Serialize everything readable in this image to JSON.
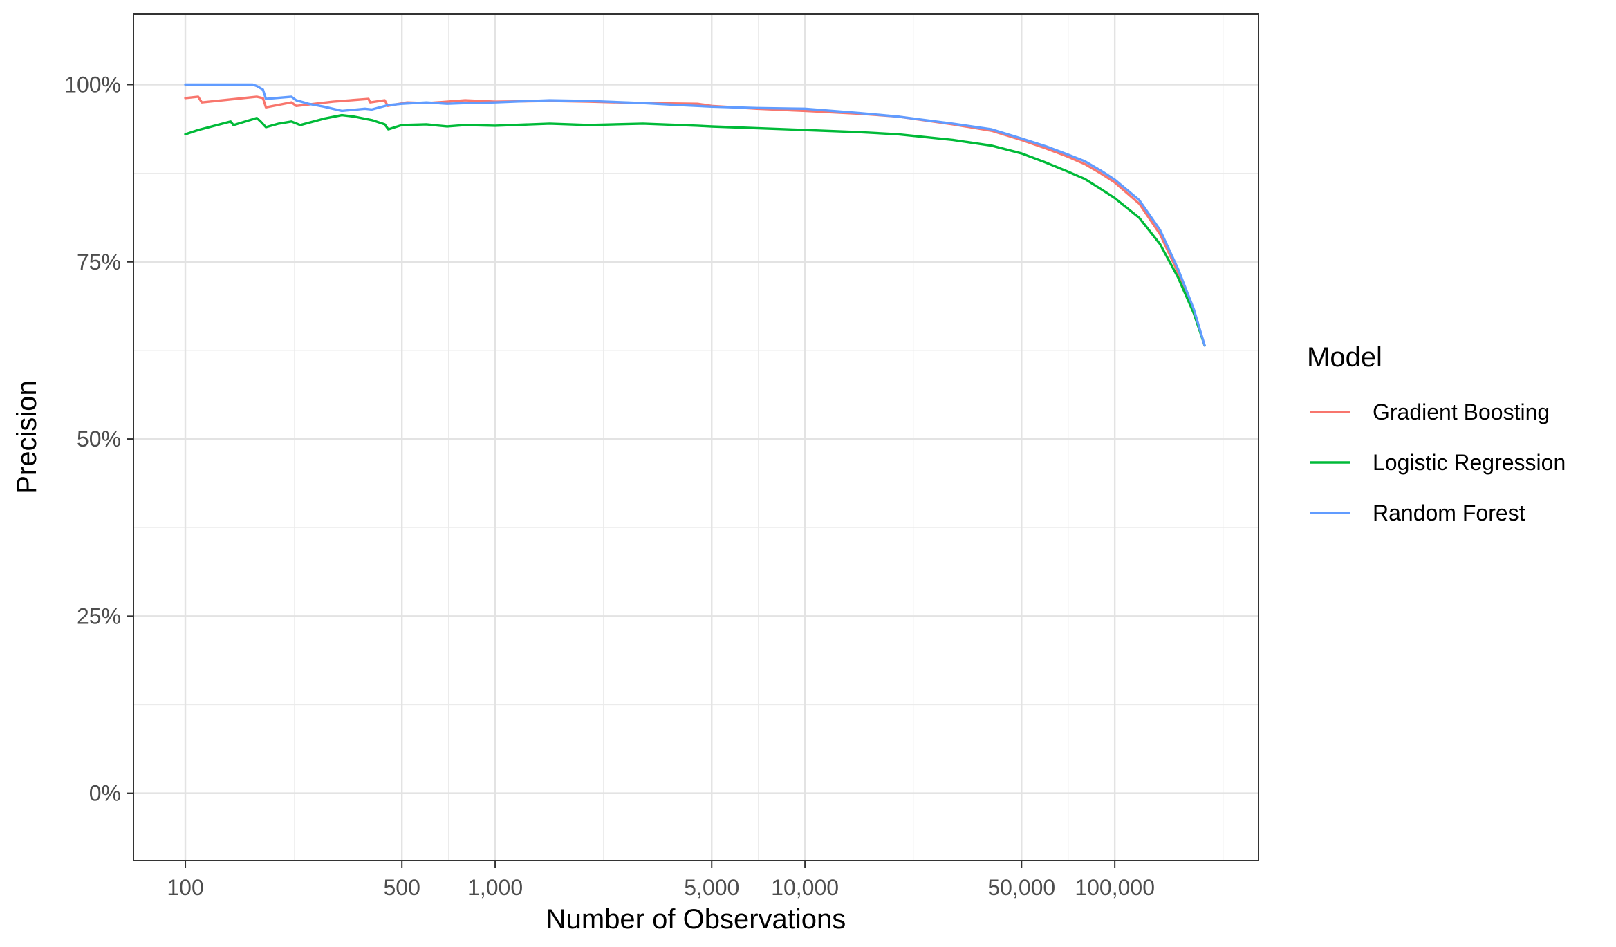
{
  "chart_data": {
    "type": "line",
    "xlabel": "Number of Observations",
    "ylabel": "Precision",
    "x_scale": "log10",
    "xlim": [
      68,
      291000
    ],
    "ylim": [
      -0.095,
      1.1
    ],
    "x_ticks": [
      {
        "value": 100,
        "label": "100"
      },
      {
        "value": 500,
        "label": "500"
      },
      {
        "value": 1000,
        "label": "1,000"
      },
      {
        "value": 5000,
        "label": "5,000"
      },
      {
        "value": 10000,
        "label": "10,000"
      },
      {
        "value": 50000,
        "label": "50,000"
      },
      {
        "value": 100000,
        "label": "100,000"
      }
    ],
    "x_minor_ticks": [
      225,
      707,
      2236,
      7071,
      22360,
      70710,
      223600
    ],
    "y_ticks": [
      {
        "value": 0,
        "label": "0%"
      },
      {
        "value": 0.25,
        "label": "25%"
      },
      {
        "value": 0.5,
        "label": "50%"
      },
      {
        "value": 0.75,
        "label": "75%"
      },
      {
        "value": 1.0,
        "label": "100%"
      }
    ],
    "y_minor_ticks": [
      0.125,
      0.375,
      0.625,
      0.875
    ],
    "grid": true,
    "legend": {
      "title": "Model",
      "position": "right"
    },
    "series": [
      {
        "name": "Gradient Boosting",
        "color": "#F8766D",
        "points": [
          [
            100,
            0.981
          ],
          [
            110,
            0.983
          ],
          [
            113,
            0.975
          ],
          [
            170,
            0.983
          ],
          [
            178,
            0.981
          ],
          [
            182,
            0.968
          ],
          [
            220,
            0.975
          ],
          [
            228,
            0.97
          ],
          [
            300,
            0.976
          ],
          [
            390,
            0.98
          ],
          [
            395,
            0.975
          ],
          [
            440,
            0.978
          ],
          [
            450,
            0.97
          ],
          [
            520,
            0.975
          ],
          [
            600,
            0.974
          ],
          [
            700,
            0.976
          ],
          [
            800,
            0.978
          ],
          [
            1000,
            0.976
          ],
          [
            1500,
            0.977
          ],
          [
            2000,
            0.976
          ],
          [
            3000,
            0.974
          ],
          [
            4500,
            0.973
          ],
          [
            5000,
            0.97
          ],
          [
            7000,
            0.966
          ],
          [
            10000,
            0.963
          ],
          [
            15000,
            0.959
          ],
          [
            20000,
            0.955
          ],
          [
            30000,
            0.944
          ],
          [
            40000,
            0.935
          ],
          [
            50000,
            0.922
          ],
          [
            60000,
            0.91
          ],
          [
            70000,
            0.899
          ],
          [
            80000,
            0.888
          ],
          [
            90000,
            0.875
          ],
          [
            100000,
            0.862
          ],
          [
            120000,
            0.832
          ],
          [
            140000,
            0.789
          ],
          [
            160000,
            0.735
          ],
          [
            180000,
            0.68
          ],
          [
            195000,
            0.632
          ]
        ]
      },
      {
        "name": "Logistic Regression",
        "color": "#00BA38",
        "points": [
          [
            100,
            0.93
          ],
          [
            110,
            0.936
          ],
          [
            140,
            0.948
          ],
          [
            143,
            0.943
          ],
          [
            170,
            0.953
          ],
          [
            175,
            0.948
          ],
          [
            182,
            0.94
          ],
          [
            200,
            0.945
          ],
          [
            220,
            0.948
          ],
          [
            235,
            0.943
          ],
          [
            280,
            0.952
          ],
          [
            320,
            0.957
          ],
          [
            350,
            0.955
          ],
          [
            400,
            0.95
          ],
          [
            440,
            0.944
          ],
          [
            452,
            0.937
          ],
          [
            500,
            0.943
          ],
          [
            600,
            0.944
          ],
          [
            700,
            0.941
          ],
          [
            800,
            0.943
          ],
          [
            1000,
            0.942
          ],
          [
            1500,
            0.945
          ],
          [
            2000,
            0.943
          ],
          [
            3000,
            0.945
          ],
          [
            4500,
            0.942
          ],
          [
            5000,
            0.941
          ],
          [
            10000,
            0.936
          ],
          [
            15000,
            0.933
          ],
          [
            20000,
            0.93
          ],
          [
            30000,
            0.922
          ],
          [
            40000,
            0.914
          ],
          [
            50000,
            0.903
          ],
          [
            60000,
            0.89
          ],
          [
            70000,
            0.878
          ],
          [
            80000,
            0.867
          ],
          [
            90000,
            0.853
          ],
          [
            100000,
            0.84
          ],
          [
            120000,
            0.812
          ],
          [
            140000,
            0.775
          ],
          [
            160000,
            0.728
          ],
          [
            180000,
            0.677
          ],
          [
            195000,
            0.632
          ]
        ]
      },
      {
        "name": "Random Forest",
        "color": "#619CFF",
        "points": [
          [
            100,
            1.0
          ],
          [
            165,
            1.0
          ],
          [
            170,
            0.998
          ],
          [
            178,
            0.993
          ],
          [
            182,
            0.98
          ],
          [
            220,
            0.983
          ],
          [
            228,
            0.978
          ],
          [
            250,
            0.973
          ],
          [
            280,
            0.969
          ],
          [
            320,
            0.963
          ],
          [
            380,
            0.966
          ],
          [
            400,
            0.965
          ],
          [
            450,
            0.971
          ],
          [
            500,
            0.973
          ],
          [
            600,
            0.975
          ],
          [
            700,
            0.973
          ],
          [
            800,
            0.974
          ],
          [
            1000,
            0.975
          ],
          [
            1500,
            0.978
          ],
          [
            2000,
            0.977
          ],
          [
            3000,
            0.974
          ],
          [
            4000,
            0.971
          ],
          [
            5000,
            0.969
          ],
          [
            7000,
            0.967
          ],
          [
            10000,
            0.966
          ],
          [
            15000,
            0.96
          ],
          [
            20000,
            0.955
          ],
          [
            30000,
            0.945
          ],
          [
            40000,
            0.937
          ],
          [
            50000,
            0.924
          ],
          [
            60000,
            0.913
          ],
          [
            70000,
            0.902
          ],
          [
            80000,
            0.892
          ],
          [
            90000,
            0.879
          ],
          [
            100000,
            0.866
          ],
          [
            120000,
            0.837
          ],
          [
            140000,
            0.795
          ],
          [
            160000,
            0.74
          ],
          [
            180000,
            0.683
          ],
          [
            195000,
            0.632
          ]
        ]
      }
    ]
  }
}
